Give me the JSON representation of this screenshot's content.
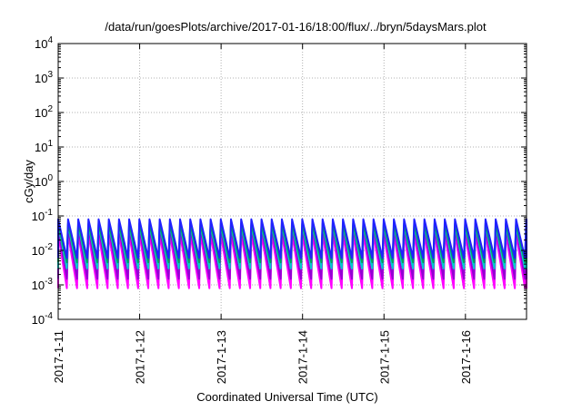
{
  "chart_data": {
    "type": "line",
    "title": "/data/run/goesPlots/archive/2017-01-16/18:00/flux/../bryn/5daysMars.plot",
    "xlabel": "Coordinated Universal Time (UTC)",
    "ylabel": "cGy/day",
    "yscale": "log",
    "ylim": [
      0.0001,
      10000
    ],
    "xlim": [
      "2017-01-11T00:00",
      "2017-01-16T18:00"
    ],
    "x_ticks": [
      "2017-1-11",
      "2017-1-12",
      "2017-1-13",
      "2017-1-14",
      "2017-1-15",
      "2017-1-16"
    ],
    "y_ticks": [
      {
        "base": "10",
        "exp": "-4"
      },
      {
        "base": "10",
        "exp": "-3"
      },
      {
        "base": "10",
        "exp": "-2"
      },
      {
        "base": "10",
        "exp": "-1"
      },
      {
        "base": "10",
        "exp": "0"
      },
      {
        "base": "10",
        "exp": "1"
      },
      {
        "base": "10",
        "exp": "2"
      },
      {
        "base": "10",
        "exp": "3"
      },
      {
        "base": "10",
        "exp": "4"
      }
    ],
    "grid": true,
    "cycles_per_day": 8,
    "series": [
      {
        "color": "#ff00ff",
        "peak": 0.03,
        "trough": 0.0008
      },
      {
        "color": "#9400d3",
        "peak": 0.045,
        "trough": 0.0015
      },
      {
        "color": "#00cccc",
        "peak": 0.055,
        "trough": 0.003
      },
      {
        "color": "#00a060",
        "peak": 0.06,
        "trough": 0.0045
      },
      {
        "color": "#2020ff",
        "peak": 0.08,
        "trough": 0.006
      }
    ]
  }
}
